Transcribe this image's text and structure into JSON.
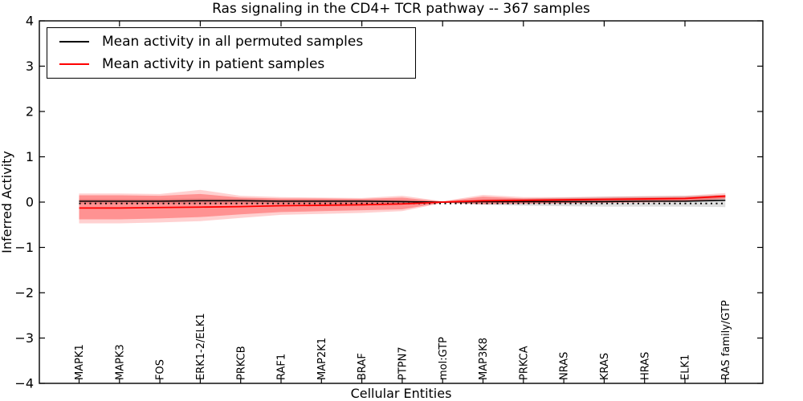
{
  "chart_data": {
    "type": "line",
    "title": "Ras signaling in the CD4+ TCR pathway -- 367 samples",
    "xlabel": "Cellular Entities",
    "ylabel": "Inferred Activity",
    "ylim": [
      -4,
      4
    ],
    "yticks": [
      "4",
      "3",
      "2",
      "1",
      "0",
      "−1",
      "−2",
      "−3",
      "−4"
    ],
    "grid": false,
    "legend_position": "upper left",
    "categories": [
      "MAPK1",
      "MAPK3",
      "FOS",
      "ERK1-2/ELK1",
      "PRKCB",
      "RAF1",
      "MAP2K1",
      "BRAF",
      "PTPN7",
      "mol:GTP",
      "MAP3K8",
      "PRKCA",
      "NRAS",
      "KRAS",
      "HRAS",
      "ELK1",
      "RAS family/GTP"
    ],
    "series": [
      {
        "name": "Mean activity in all permuted samples",
        "color": "#000000",
        "values": [
          0.02,
          0.02,
          0.02,
          0.03,
          0.03,
          0.02,
          0.02,
          0.02,
          0.01,
          0.0,
          0.01,
          0.01,
          0.01,
          0.01,
          0.02,
          0.02,
          0.04
        ]
      },
      {
        "name": "Mean activity in patient samples",
        "color": "#ff0000",
        "values": [
          -0.13,
          -0.13,
          -0.12,
          -0.11,
          -0.1,
          -0.08,
          -0.07,
          -0.06,
          -0.04,
          0.0,
          0.03,
          0.04,
          0.05,
          0.06,
          0.07,
          0.08,
          0.13
        ]
      }
    ],
    "bands": [
      {
        "name": "permuted-samples-std",
        "color": "rgba(0,0,0,0.13)",
        "upper": [
          0.07,
          0.07,
          0.07,
          0.08,
          0.07,
          0.06,
          0.06,
          0.05,
          0.05,
          0.01,
          0.06,
          0.08,
          0.1,
          0.12,
          0.13,
          0.14,
          0.16
        ],
        "lower": [
          -0.04,
          -0.04,
          -0.04,
          -0.04,
          -0.04,
          -0.04,
          -0.04,
          -0.04,
          -0.03,
          -0.01,
          -0.06,
          -0.08,
          -0.09,
          -0.1,
          -0.1,
          -0.1,
          -0.11
        ]
      },
      {
        "name": "patient-samples-outer",
        "color": "rgba(255,0,0,0.18)",
        "upper": [
          0.19,
          0.19,
          0.18,
          0.27,
          0.14,
          0.11,
          0.1,
          0.09,
          0.14,
          0.02,
          0.16,
          0.11,
          0.11,
          0.12,
          0.13,
          0.14,
          0.2
        ],
        "lower": [
          -0.47,
          -0.47,
          -0.45,
          -0.42,
          -0.35,
          -0.28,
          -0.26,
          -0.24,
          -0.2,
          -0.02,
          -0.05,
          -0.04,
          -0.03,
          -0.02,
          -0.01,
          0.0,
          0.06
        ]
      },
      {
        "name": "patient-samples-std",
        "color": "rgba(255,0,0,0.30)",
        "upper": [
          0.15,
          0.15,
          0.14,
          0.18,
          0.1,
          0.08,
          0.08,
          0.07,
          0.1,
          0.01,
          0.12,
          0.08,
          0.08,
          0.09,
          0.1,
          0.11,
          0.16
        ],
        "lower": [
          -0.38,
          -0.38,
          -0.36,
          -0.33,
          -0.27,
          -0.22,
          -0.2,
          -0.18,
          -0.16,
          -0.01,
          -0.04,
          -0.03,
          -0.02,
          -0.01,
          0.0,
          0.02,
          0.08
        ]
      }
    ],
    "zero_line": {
      "style": "dotted",
      "color": "#000000",
      "value": -0.03
    }
  },
  "legend": {
    "entries": [
      {
        "label": "Mean activity in all permuted samples",
        "color": "#000000"
      },
      {
        "label": "Mean activity in patient samples",
        "color": "#ff0000"
      }
    ]
  },
  "colors": {
    "patient_line": "#ff0000",
    "permuted_line": "#000000",
    "background": "#ffffff",
    "axis": "#000000"
  }
}
